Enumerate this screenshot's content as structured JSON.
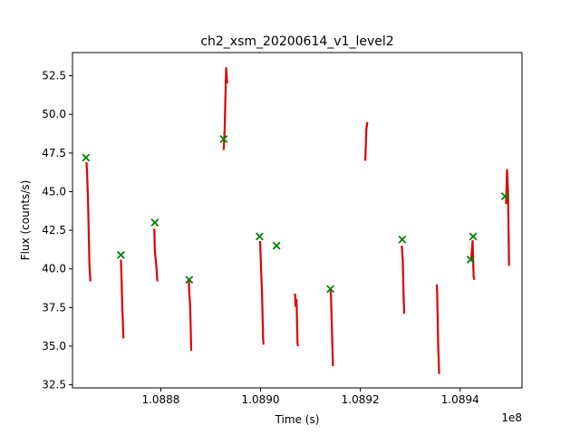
{
  "chart_data": {
    "type": "line",
    "title": "ch2_xsm_20200614_v1_level2",
    "xlabel": "Time (s)",
    "ylabel": "Flux (counts/s)",
    "x_offset_label": "1e8",
    "xlim": [
      108862300,
      108952400
    ],
    "ylim": [
      32.3,
      54.0
    ],
    "x_ticks": [
      108880000,
      108900000,
      108920000,
      108940000
    ],
    "x_tick_labels": [
      "1.0888",
      "1.0890",
      "1.0892",
      "1.0894"
    ],
    "y_ticks": [
      32.5,
      35.0,
      37.5,
      40.0,
      42.5,
      45.0,
      47.5,
      50.0,
      52.5
    ],
    "y_tick_labels": [
      "32.5",
      "35.0",
      "37.5",
      "40.0",
      "42.5",
      "45.0",
      "47.5",
      "50.0",
      "52.5"
    ],
    "grid": false,
    "series": [
      {
        "kind": "line",
        "color": "#e00000",
        "segments": [
          [
            [
              108865100,
              46.9
            ],
            [
              108865200,
              46.4
            ],
            [
              108865400,
              44.5
            ],
            [
              108865700,
              40.2
            ],
            [
              108865900,
              39.2
            ]
          ],
          [
            [
              108872000,
              40.6
            ],
            [
              108872100,
              39.8
            ],
            [
              108872300,
              37.5
            ],
            [
              108872500,
              35.5
            ]
          ],
          [
            [
              108878700,
              42.6
            ],
            [
              108878800,
              41.2
            ],
            [
              108879100,
              40.2
            ],
            [
              108879300,
              39.2
            ]
          ],
          [
            [
              108885600,
              39.3
            ],
            [
              108885700,
              38.5
            ],
            [
              108885900,
              37.5
            ],
            [
              108886100,
              34.7
            ]
          ],
          [
            [
              108892600,
              47.7
            ],
            [
              108892800,
              49.0
            ],
            [
              108893000,
              51.8
            ],
            [
              108893100,
              53.0
            ],
            [
              108893300,
              52.0
            ]
          ],
          [
            [
              108899900,
              41.8
            ],
            [
              108900100,
              40.0
            ],
            [
              108900300,
              38.3
            ],
            [
              108900500,
              35.5
            ],
            [
              108900600,
              35.1
            ]
          ],
          [
            [
              108906900,
              38.4
            ],
            [
              108907000,
              37.6
            ],
            [
              108907200,
              38.0
            ],
            [
              108907400,
              35.2
            ],
            [
              108907500,
              35.0
            ]
          ],
          [
            [
              108914000,
              38.6
            ],
            [
              108914100,
              38.3
            ],
            [
              108914300,
              36.0
            ],
            [
              108914500,
              33.7
            ]
          ],
          [
            [
              108921000,
              47.0
            ],
            [
              108921200,
              49.0
            ],
            [
              108921400,
              49.5
            ]
          ],
          [
            [
              108928300,
              41.5
            ],
            [
              108928500,
              40.6
            ],
            [
              108928700,
              38.0
            ],
            [
              108928800,
              37.1
            ]
          ],
          [
            [
              108935300,
              39.0
            ],
            [
              108935400,
              38.5
            ],
            [
              108935600,
              35.0
            ],
            [
              108935800,
              33.2
            ]
          ],
          [
            [
              108942200,
              40.5
            ],
            [
              108942500,
              41.8
            ],
            [
              108942700,
              39.5
            ],
            [
              108942900,
              39.3
            ]
          ],
          [
            [
              108949200,
              44.2
            ],
            [
              108949400,
              46.4
            ],
            [
              108949600,
              45.0
            ],
            [
              108949800,
              40.2
            ]
          ]
        ]
      },
      {
        "kind": "scatter",
        "marker": "x",
        "color": "#008000",
        "x": [
          108865000,
          108872000,
          108878800,
          108885700,
          108892600,
          108899800,
          108903200,
          108914000,
          108928400,
          108942100,
          108942600,
          108949000
        ],
        "y": [
          47.2,
          40.9,
          43.0,
          39.3,
          48.4,
          42.1,
          41.5,
          38.7,
          41.9,
          40.6,
          42.1,
          44.7
        ]
      }
    ]
  }
}
